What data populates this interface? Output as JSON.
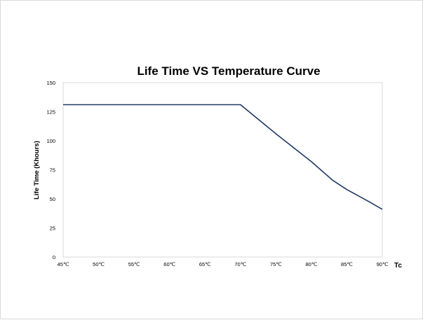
{
  "chart_data": {
    "type": "line",
    "title": "Life Time VS  Temperature Curve",
    "ylabel": "Life Time (Khours)",
    "xunit_label": "Tc",
    "x_tick_labels": [
      "45℃",
      "50℃",
      "55℃",
      "60℃",
      "65℃",
      "70℃",
      "75℃",
      "80℃",
      "85℃",
      "90℃"
    ],
    "x_ticks": [
      45,
      50,
      55,
      60,
      65,
      70,
      75,
      80,
      85,
      90
    ],
    "y_ticks": [
      0,
      25,
      50,
      75,
      100,
      125,
      150
    ],
    "xlim": [
      45,
      90
    ],
    "ylim": [
      0,
      150
    ],
    "grid": false,
    "legend": "none",
    "series": [
      {
        "color": "#1f3864",
        "x": [
          45,
          70,
          75,
          80,
          83,
          85,
          88,
          90
        ],
        "y": [
          131,
          131,
          106,
          82,
          66,
          58,
          48,
          41
        ]
      }
    ]
  }
}
